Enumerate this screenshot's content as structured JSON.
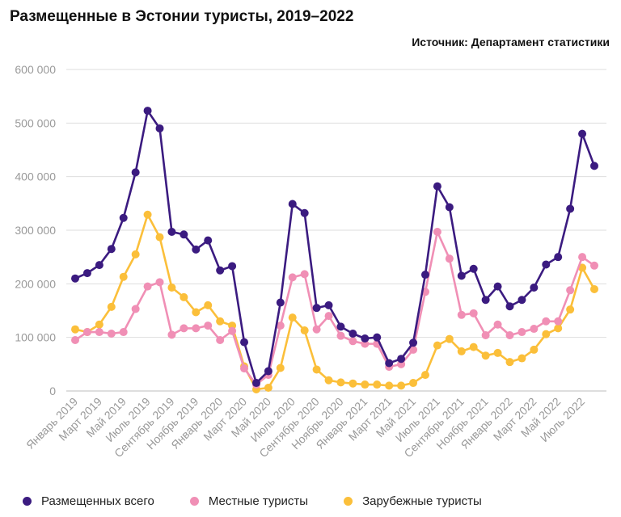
{
  "chart_data": {
    "type": "line",
    "title": "Размещенные в Эстонии туристы, 2019–2022",
    "source": "Источник: Департамент статистики",
    "ylim": [
      0,
      600000
    ],
    "yticks": [
      0,
      100000,
      200000,
      300000,
      400000,
      500000,
      600000
    ],
    "ytick_labels": [
      "0",
      "100 000",
      "200 000",
      "300 000",
      "400 000",
      "500 000",
      "600 000"
    ],
    "grid": true,
    "legend_position": "bottom",
    "categories": [
      "Январь 2019",
      "Февраль 2019",
      "Март 2019",
      "Апрель 2019",
      "Май 2019",
      "Июнь 2019",
      "Июль 2019",
      "Август 2019",
      "Сентябрь 2019",
      "Октябрь 2019",
      "Ноябрь 2019",
      "Декабрь 2019",
      "Январь 2020",
      "Февраль 2020",
      "Март 2020",
      "Апрель 2020",
      "Май 2020",
      "Июнь 2020",
      "Июль 2020",
      "Август 2020",
      "Сентябрь 2020",
      "Октябрь 2020",
      "Ноябрь 2020",
      "Декабрь 2020",
      "Январь 2021",
      "Февраль 2021",
      "Март 2021",
      "Апрель 2021",
      "Май 2021",
      "Июнь 2021",
      "Июль 2021",
      "Август 2021",
      "Сентябрь 2021",
      "Октябрь 2021",
      "Ноябрь 2021",
      "Декабрь 2021",
      "Январь 2022",
      "Февраль 2022",
      "Март 2022",
      "Апрель 2022",
      "Май 2022",
      "Июнь 2022",
      "Июль 2022",
      "Август 2022"
    ],
    "xtick_labels": [
      "Январь 2019",
      "Март 2019",
      "Май 2019",
      "Июль 2019",
      "Сентябрь 2019",
      "Ноябрь 2019",
      "Январь 2020",
      "Март 2020",
      "Май 2020",
      "Июль 2020",
      "Сентябрь 2020",
      "Ноябрь 2020",
      "Январь 2021",
      "Март 2021",
      "Май 2021",
      "Июль 2021",
      "Сентябрь 2021",
      "Ноябрь 2021",
      "Январь 2022",
      "Март 2022",
      "Май 2022",
      "Июль 2022"
    ],
    "series": [
      {
        "name": "Размещенных всего",
        "color": "#3b1b80",
        "values": [
          210000,
          220000,
          235000,
          265000,
          323000,
          408000,
          523000,
          490000,
          297000,
          292000,
          264000,
          281000,
          225000,
          233000,
          91000,
          15000,
          37000,
          165000,
          349000,
          332000,
          155000,
          160000,
          120000,
          107000,
          98000,
          100000,
          52000,
          60000,
          90000,
          217000,
          382000,
          343000,
          215000,
          228000,
          170000,
          195000,
          158000,
          170000,
          193000,
          236000,
          250000,
          340000,
          480000,
          420000
        ]
      },
      {
        "name": "Местные туристы",
        "color": "#f08fb5",
        "values": [
          95000,
          110000,
          110000,
          107000,
          110000,
          153000,
          195000,
          203000,
          105000,
          117000,
          117000,
          122000,
          95000,
          112000,
          42000,
          12000,
          30000,
          122000,
          212000,
          218000,
          115000,
          140000,
          103000,
          93000,
          88000,
          88000,
          45000,
          50000,
          77000,
          185000,
          297000,
          247000,
          142000,
          145000,
          104000,
          124000,
          104000,
          110000,
          116000,
          130000,
          130000,
          188000,
          250000,
          234000
        ]
      },
      {
        "name": "Зарубежные туристы",
        "color": "#fbbf3a",
        "values": [
          115000,
          110000,
          124000,
          157000,
          213000,
          255000,
          329000,
          287000,
          193000,
          175000,
          147000,
          160000,
          130000,
          122000,
          46000,
          3000,
          6000,
          43000,
          137000,
          113000,
          40000,
          20000,
          16000,
          14000,
          12000,
          12000,
          10000,
          10000,
          15000,
          30000,
          85000,
          97000,
          74000,
          82000,
          66000,
          71000,
          54000,
          61000,
          77000,
          106000,
          117000,
          152000,
          230000,
          190000
        ]
      }
    ]
  }
}
